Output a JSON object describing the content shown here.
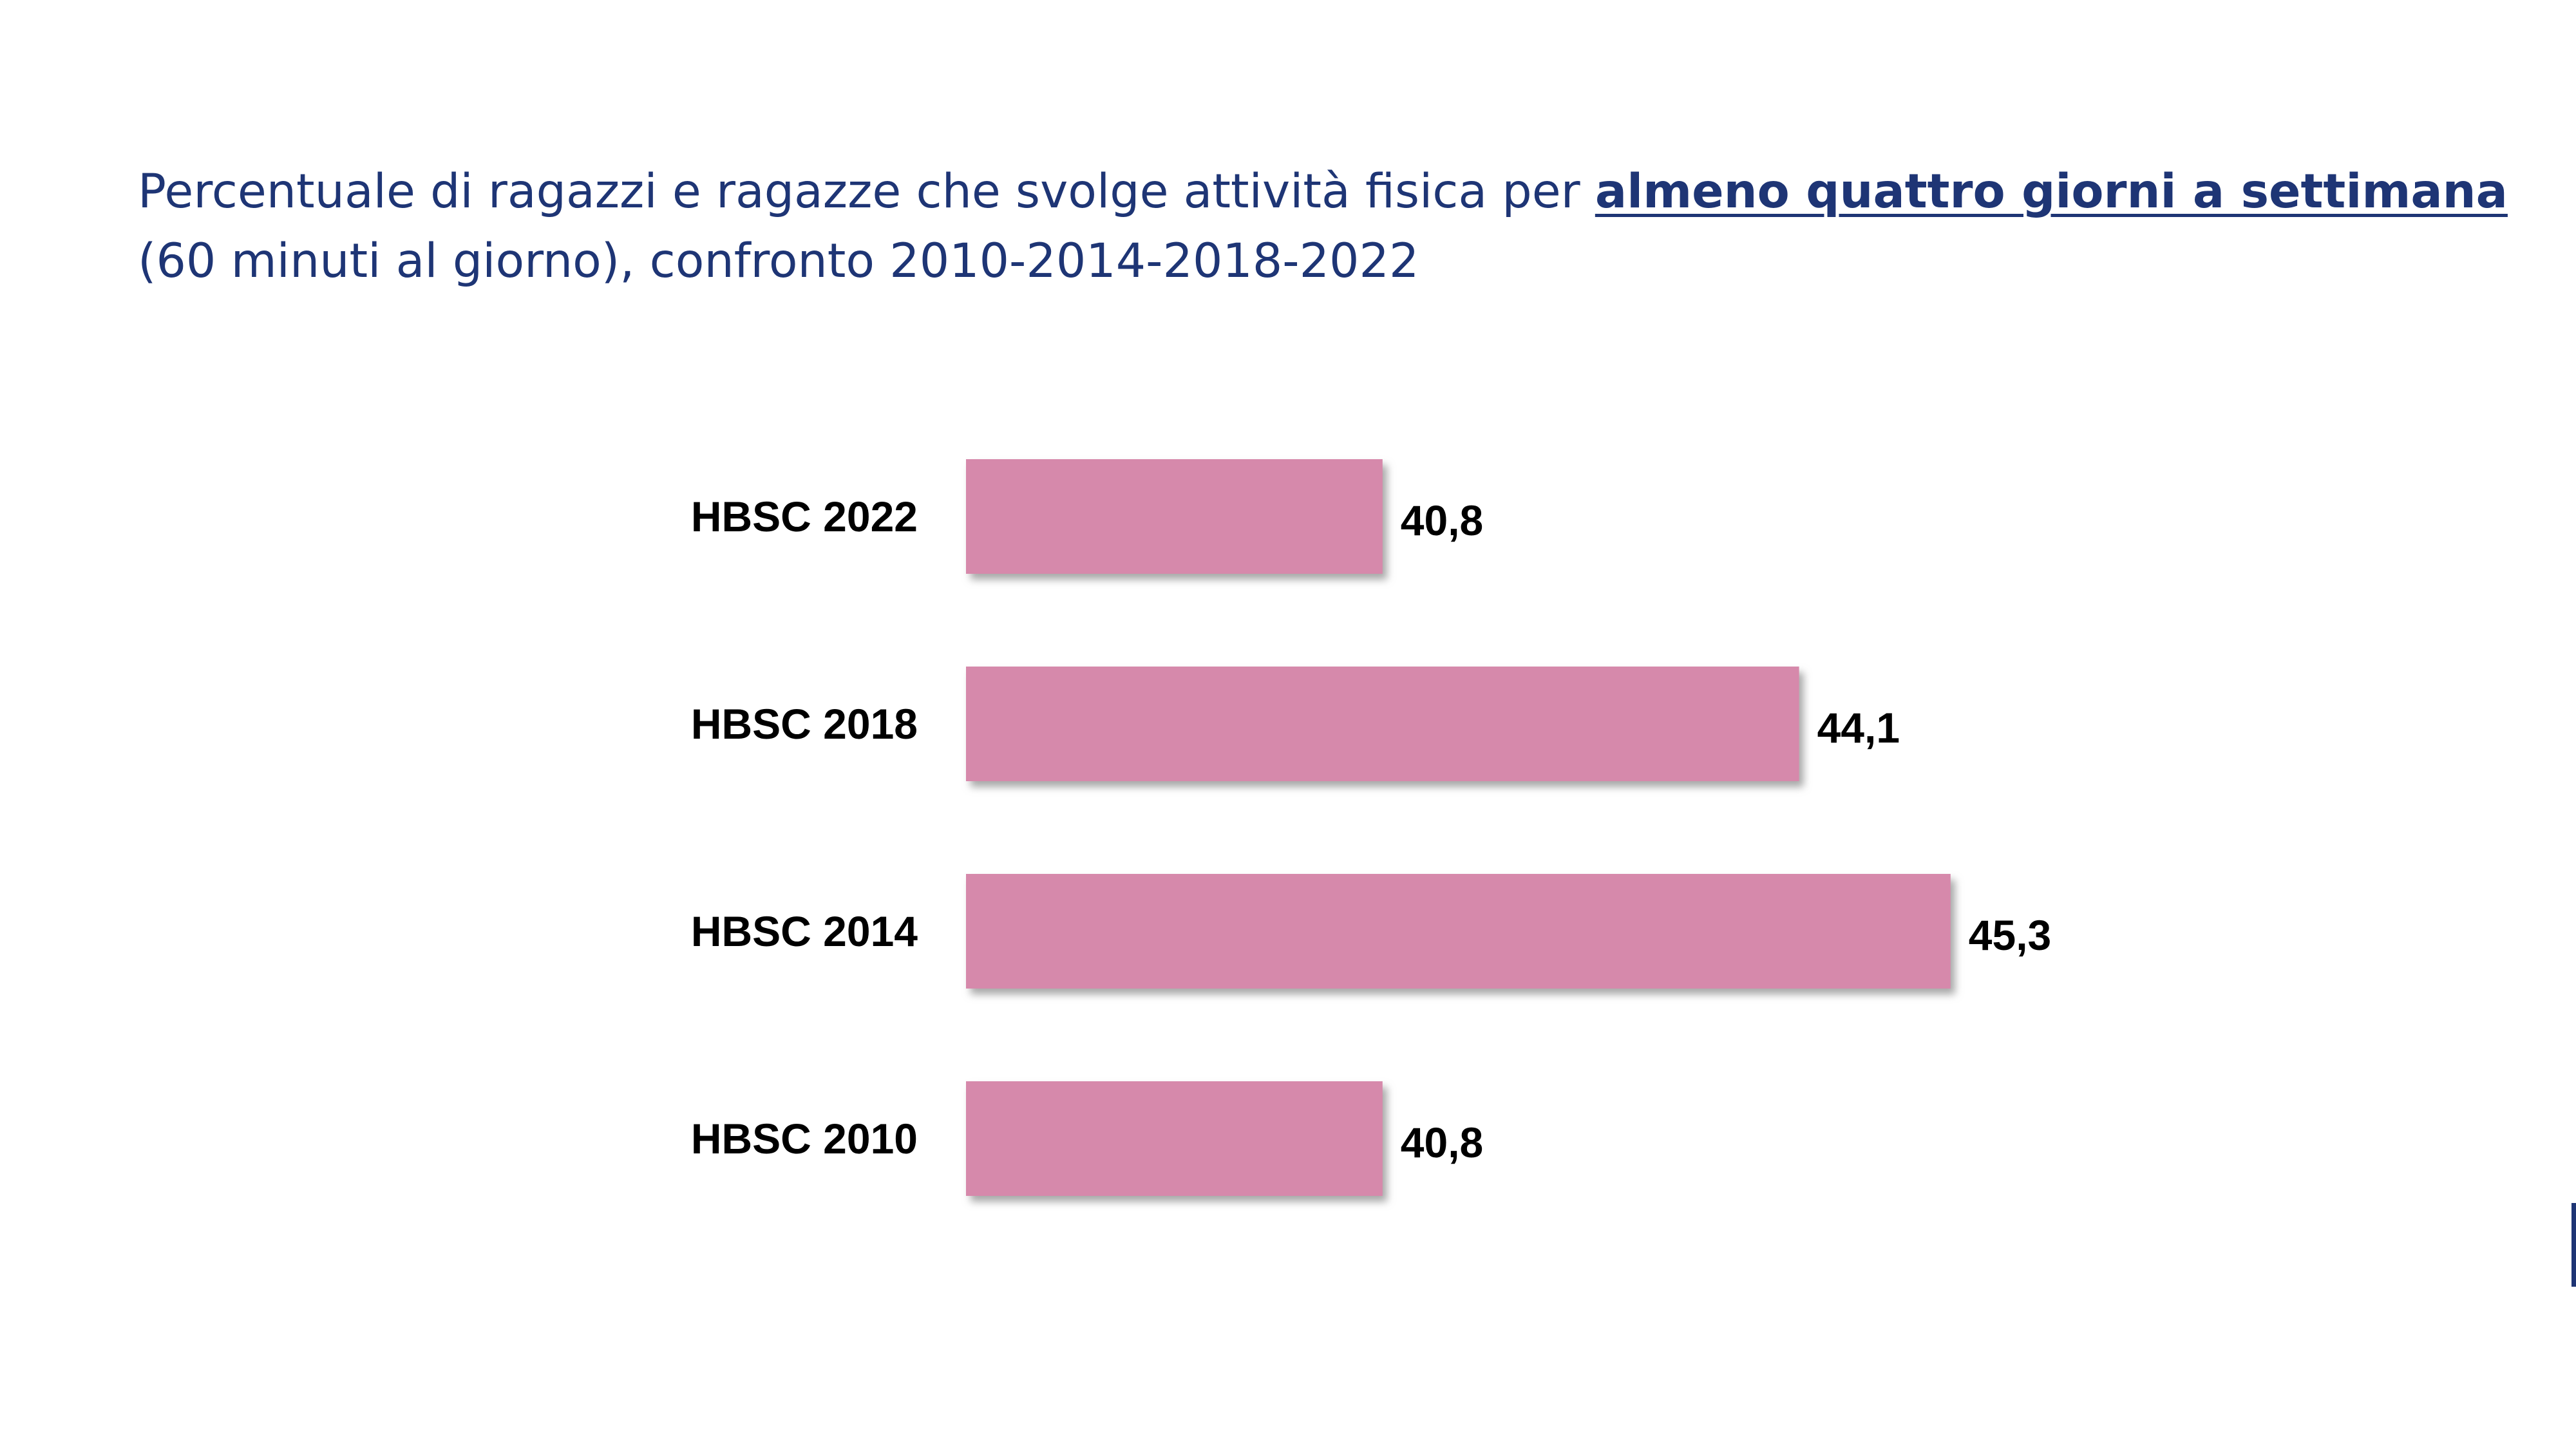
{
  "title": {
    "prefix": "Percentuale di ragazzi e ragazze che svolge attività fisica per ",
    "highlight": "almeno quattro giorni a settimana",
    "line2": "(60 minuti al giorno), confronto 2010-2014-2018-2022"
  },
  "colors": {
    "title_text": "#1e3575",
    "bar_fill": "#d689ab",
    "bar_shadow": "#9a9a9a",
    "label_text": "#000000"
  },
  "chart_data": {
    "type": "bar",
    "orientation": "horizontal",
    "categories": [
      "HBSC 2022",
      "HBSC 2018",
      "HBSC 2014",
      "HBSC 2010"
    ],
    "values": [
      40.8,
      44.1,
      45.3,
      40.8
    ],
    "value_labels": [
      "40,8",
      "44,1",
      "45,3",
      "40,8"
    ],
    "title": "Percentuale di ragazzi e ragazze che svolge attività fisica per almeno quattro giorni a settimana (60 minuti al giorno), confronto 2010-2014-2018-2022",
    "xlabel": "",
    "ylabel": "",
    "xlim": [
      37.5,
      48
    ],
    "grid": false,
    "legend": "none"
  }
}
